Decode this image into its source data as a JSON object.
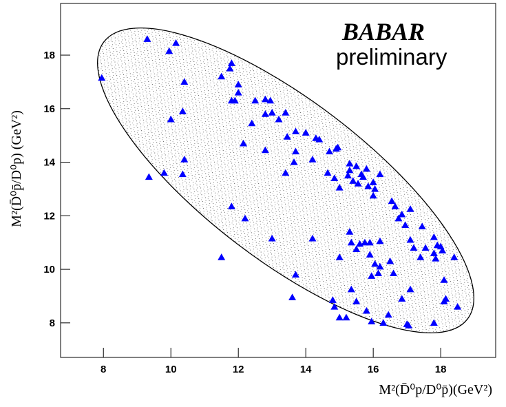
{
  "chart_data": {
    "type": "scatter",
    "logo": "BABAR",
    "subtitle": "preliminary",
    "x_label": "M²(D̄⁰p/D⁰p̄)(GeV²)",
    "y_label": "M²(D̄⁰p̄/D⁰p) (GeV²)",
    "xlim": [
      6.73,
      19.63
    ],
    "ylim": [
      6.71,
      19.93
    ],
    "xticks": [
      8,
      10,
      12,
      14,
      16,
      18
    ],
    "yticks": [
      8,
      10,
      12,
      14,
      16,
      18
    ],
    "marker": "triangle",
    "color": "#0000ff",
    "x": [
      7.95,
      9.3,
      9.95,
      10.15,
      10.4,
      10.35,
      10.0,
      10.4,
      10.35,
      9.8,
      9.35,
      11.5,
      11.75,
      11.8,
      11.8,
      12.0,
      12.0,
      11.9,
      12.5,
      12.8,
      12.95,
      13.0,
      12.8,
      13.2,
      13.4,
      13.7,
      12.4,
      12.15,
      12.8,
      13.45,
      13.7,
      13.65,
      13.4,
      14.0,
      14.3,
      14.4,
      14.7,
      14.9,
      14.95,
      14.2,
      14.65,
      15.3,
      15.3,
      15.5,
      15.25,
      15.4,
      15.55,
      15.7,
      15.8,
      15.65,
      15.85,
      16.0,
      16.05,
      16.0,
      14.85,
      15.0,
      11.8,
      12.2,
      11.5,
      13.0,
      14.2,
      15.0,
      14.8,
      14.85,
      15.0,
      15.2,
      13.6,
      13.7,
      15.3,
      15.35,
      15.5,
      15.6,
      15.35,
      15.5,
      15.75,
      15.9,
      15.8,
      16.05,
      15.95,
      16.15,
      16.2,
      15.95,
      16.3,
      16.2,
      16.5,
      16.6,
      16.45,
      16.55,
      16.65,
      16.75,
      16.85,
      16.85,
      17.0,
      17.05,
      16.95,
      17.1,
      17.1,
      17.2,
      17.1,
      17.45,
      17.4,
      17.55,
      17.8,
      17.8,
      17.9,
      17.85,
      18.0,
      18.05,
      18.1,
      18.1,
      18.15,
      18.4,
      18.5,
      17.8,
      16.2,
      15.9
    ],
    "y": [
      17.15,
      18.6,
      18.15,
      18.45,
      17.0,
      15.9,
      15.6,
      14.1,
      13.55,
      13.6,
      13.45,
      17.2,
      17.5,
      17.7,
      16.3,
      16.6,
      16.9,
      16.3,
      16.3,
      16.35,
      16.3,
      15.85,
      15.8,
      15.6,
      15.85,
      15.15,
      15.45,
      14.7,
      14.45,
      14.95,
      14.4,
      14.0,
      13.6,
      15.1,
      14.9,
      14.85,
      14.4,
      14.5,
      14.55,
      14.1,
      13.6,
      13.95,
      13.7,
      13.85,
      13.5,
      13.3,
      13.2,
      13.45,
      13.75,
      13.55,
      13.1,
      13.25,
      13.0,
      12.75,
      13.4,
      13.05,
      12.35,
      11.9,
      10.45,
      11.15,
      11.15,
      10.45,
      8.85,
      8.6,
      8.2,
      8.2,
      8.95,
      9.8,
      11.4,
      11.0,
      10.75,
      10.95,
      9.25,
      8.8,
      11.0,
      11.0,
      8.45,
      10.2,
      9.75,
      9.85,
      10.1,
      8.05,
      8.0,
      11.05,
      10.3,
      9.85,
      8.3,
      12.55,
      12.35,
      11.9,
      12.05,
      8.9,
      7.95,
      7.9,
      11.65,
      12.25,
      11.1,
      10.8,
      9.25,
      11.6,
      10.45,
      10.8,
      11.2,
      10.6,
      10.9,
      10.4,
      10.85,
      10.7,
      9.6,
      8.8,
      8.9,
      10.45,
      8.6,
      8.0,
      13.55,
      10.55
    ]
  }
}
